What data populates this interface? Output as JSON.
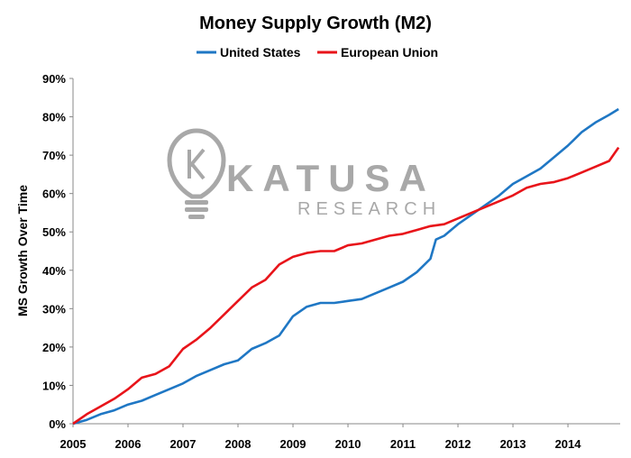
{
  "chart_data": {
    "type": "line",
    "title": "Money Supply Growth (M2)",
    "xlabel": "",
    "ylabel": "MS Growth Over Time",
    "x_ticks": [
      "2005",
      "2006",
      "2007",
      "2008",
      "2009",
      "2010",
      "2011",
      "2012",
      "2013",
      "2014"
    ],
    "y_ticks": [
      "0%",
      "10%",
      "20%",
      "30%",
      "40%",
      "50%",
      "60%",
      "70%",
      "80%",
      "90%"
    ],
    "xlim": [
      2005,
      2014.95
    ],
    "ylim": [
      0,
      90
    ],
    "grid": false,
    "legend_position": "top",
    "series": [
      {
        "name": "United States",
        "color": "#1f77c4",
        "x": [
          2005,
          2005.25,
          2005.5,
          2005.75,
          2006,
          2006.25,
          2006.5,
          2006.75,
          2007,
          2007.25,
          2007.5,
          2007.75,
          2008,
          2008.25,
          2008.5,
          2008.75,
          2009,
          2009.25,
          2009.5,
          2009.75,
          2010,
          2010.25,
          2010.5,
          2010.75,
          2011,
          2011.25,
          2011.5,
          2011.6,
          2011.75,
          2012,
          2012.25,
          2012.5,
          2012.75,
          2013,
          2013.25,
          2013.5,
          2013.75,
          2014,
          2014.25,
          2014.5,
          2014.75,
          2014.92
        ],
        "y": [
          0,
          1,
          2.5,
          3.5,
          5,
          6,
          7.5,
          9,
          10.5,
          12.5,
          14,
          15.5,
          16.5,
          19.5,
          21,
          23,
          28,
          30.5,
          31.5,
          31.5,
          32,
          32.5,
          34,
          35.5,
          37,
          39.5,
          43,
          48,
          49,
          52,
          54.5,
          57,
          59.5,
          62.5,
          64.5,
          66.5,
          69.5,
          72.5,
          76,
          78.5,
          80.5,
          82
        ]
      },
      {
        "name": "European Union",
        "color": "#e8141a",
        "x": [
          2005,
          2005.25,
          2005.5,
          2005.75,
          2006,
          2006.25,
          2006.5,
          2006.75,
          2007,
          2007.25,
          2007.5,
          2007.75,
          2008,
          2008.25,
          2008.5,
          2008.75,
          2009,
          2009.25,
          2009.5,
          2009.75,
          2010,
          2010.25,
          2010.5,
          2010.75,
          2011,
          2011.25,
          2011.5,
          2011.75,
          2012,
          2012.25,
          2012.5,
          2012.75,
          2013,
          2013.25,
          2013.5,
          2013.75,
          2014,
          2014.25,
          2014.5,
          2014.75,
          2014.92
        ],
        "y": [
          0,
          2.5,
          4.5,
          6.5,
          9,
          12,
          13,
          15,
          19.5,
          22,
          25,
          28.5,
          32,
          35.5,
          37.5,
          41.5,
          43.5,
          44.5,
          45,
          45,
          46.5,
          47,
          48,
          49,
          49.5,
          50.5,
          51.5,
          52,
          53.5,
          55,
          56.5,
          58,
          59.5,
          61.5,
          62.5,
          63,
          64,
          65.5,
          67,
          68.5,
          72
        ]
      }
    ]
  },
  "watermark": {
    "brand": "KATUSA",
    "sub": "RESEARCH",
    "icon": "lightbulb-k-icon"
  }
}
